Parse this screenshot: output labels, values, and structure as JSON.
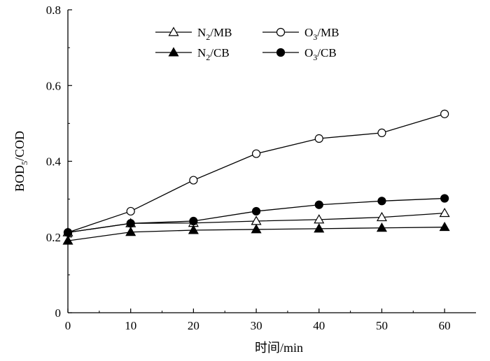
{
  "chart_data": {
    "type": "line",
    "xlabel": "时间/min",
    "ylabel": {
      "prefix": "BOD",
      "sub": "5",
      "suffix": "/COD"
    },
    "xlim": [
      0,
      65
    ],
    "ylim": [
      0,
      0.8
    ],
    "xticks": [
      0,
      10,
      20,
      30,
      40,
      50,
      60
    ],
    "yticks": [
      0,
      0.2,
      0.4,
      0.6,
      0.8
    ],
    "ytick_labels": [
      "0",
      "0.2",
      "0.4",
      "0.6",
      "0.8"
    ],
    "grid": false,
    "legend_position": "top-center",
    "series": [
      {
        "name": "N2/MB",
        "label": {
          "base": "N",
          "sub": "2",
          "rest": "/MB"
        },
        "marker": "triangle-open",
        "x": [
          0,
          10,
          20,
          30,
          40,
          50,
          60
        ],
        "y": [
          0.212,
          0.236,
          0.237,
          0.242,
          0.246,
          0.252,
          0.263
        ]
      },
      {
        "name": "O3/MB",
        "label": {
          "base": "O",
          "sub": "3",
          "rest": "/MB"
        },
        "marker": "circle-open",
        "x": [
          0,
          10,
          20,
          30,
          40,
          50,
          60
        ],
        "y": [
          0.212,
          0.268,
          0.35,
          0.42,
          0.46,
          0.475,
          0.525
        ]
      },
      {
        "name": "N2/CB",
        "label": {
          "base": "N",
          "sub": "2",
          "rest": "/CB"
        },
        "marker": "triangle-filled",
        "x": [
          0,
          10,
          20,
          30,
          40,
          50,
          60
        ],
        "y": [
          0.19,
          0.213,
          0.218,
          0.22,
          0.222,
          0.224,
          0.226
        ]
      },
      {
        "name": "O3/CB",
        "label": {
          "base": "O",
          "sub": "3",
          "rest": "/CB"
        },
        "marker": "circle-filled",
        "x": [
          0,
          10,
          20,
          30,
          40,
          50,
          60
        ],
        "y": [
          0.212,
          0.236,
          0.242,
          0.268,
          0.285,
          0.295,
          0.302
        ]
      }
    ]
  }
}
